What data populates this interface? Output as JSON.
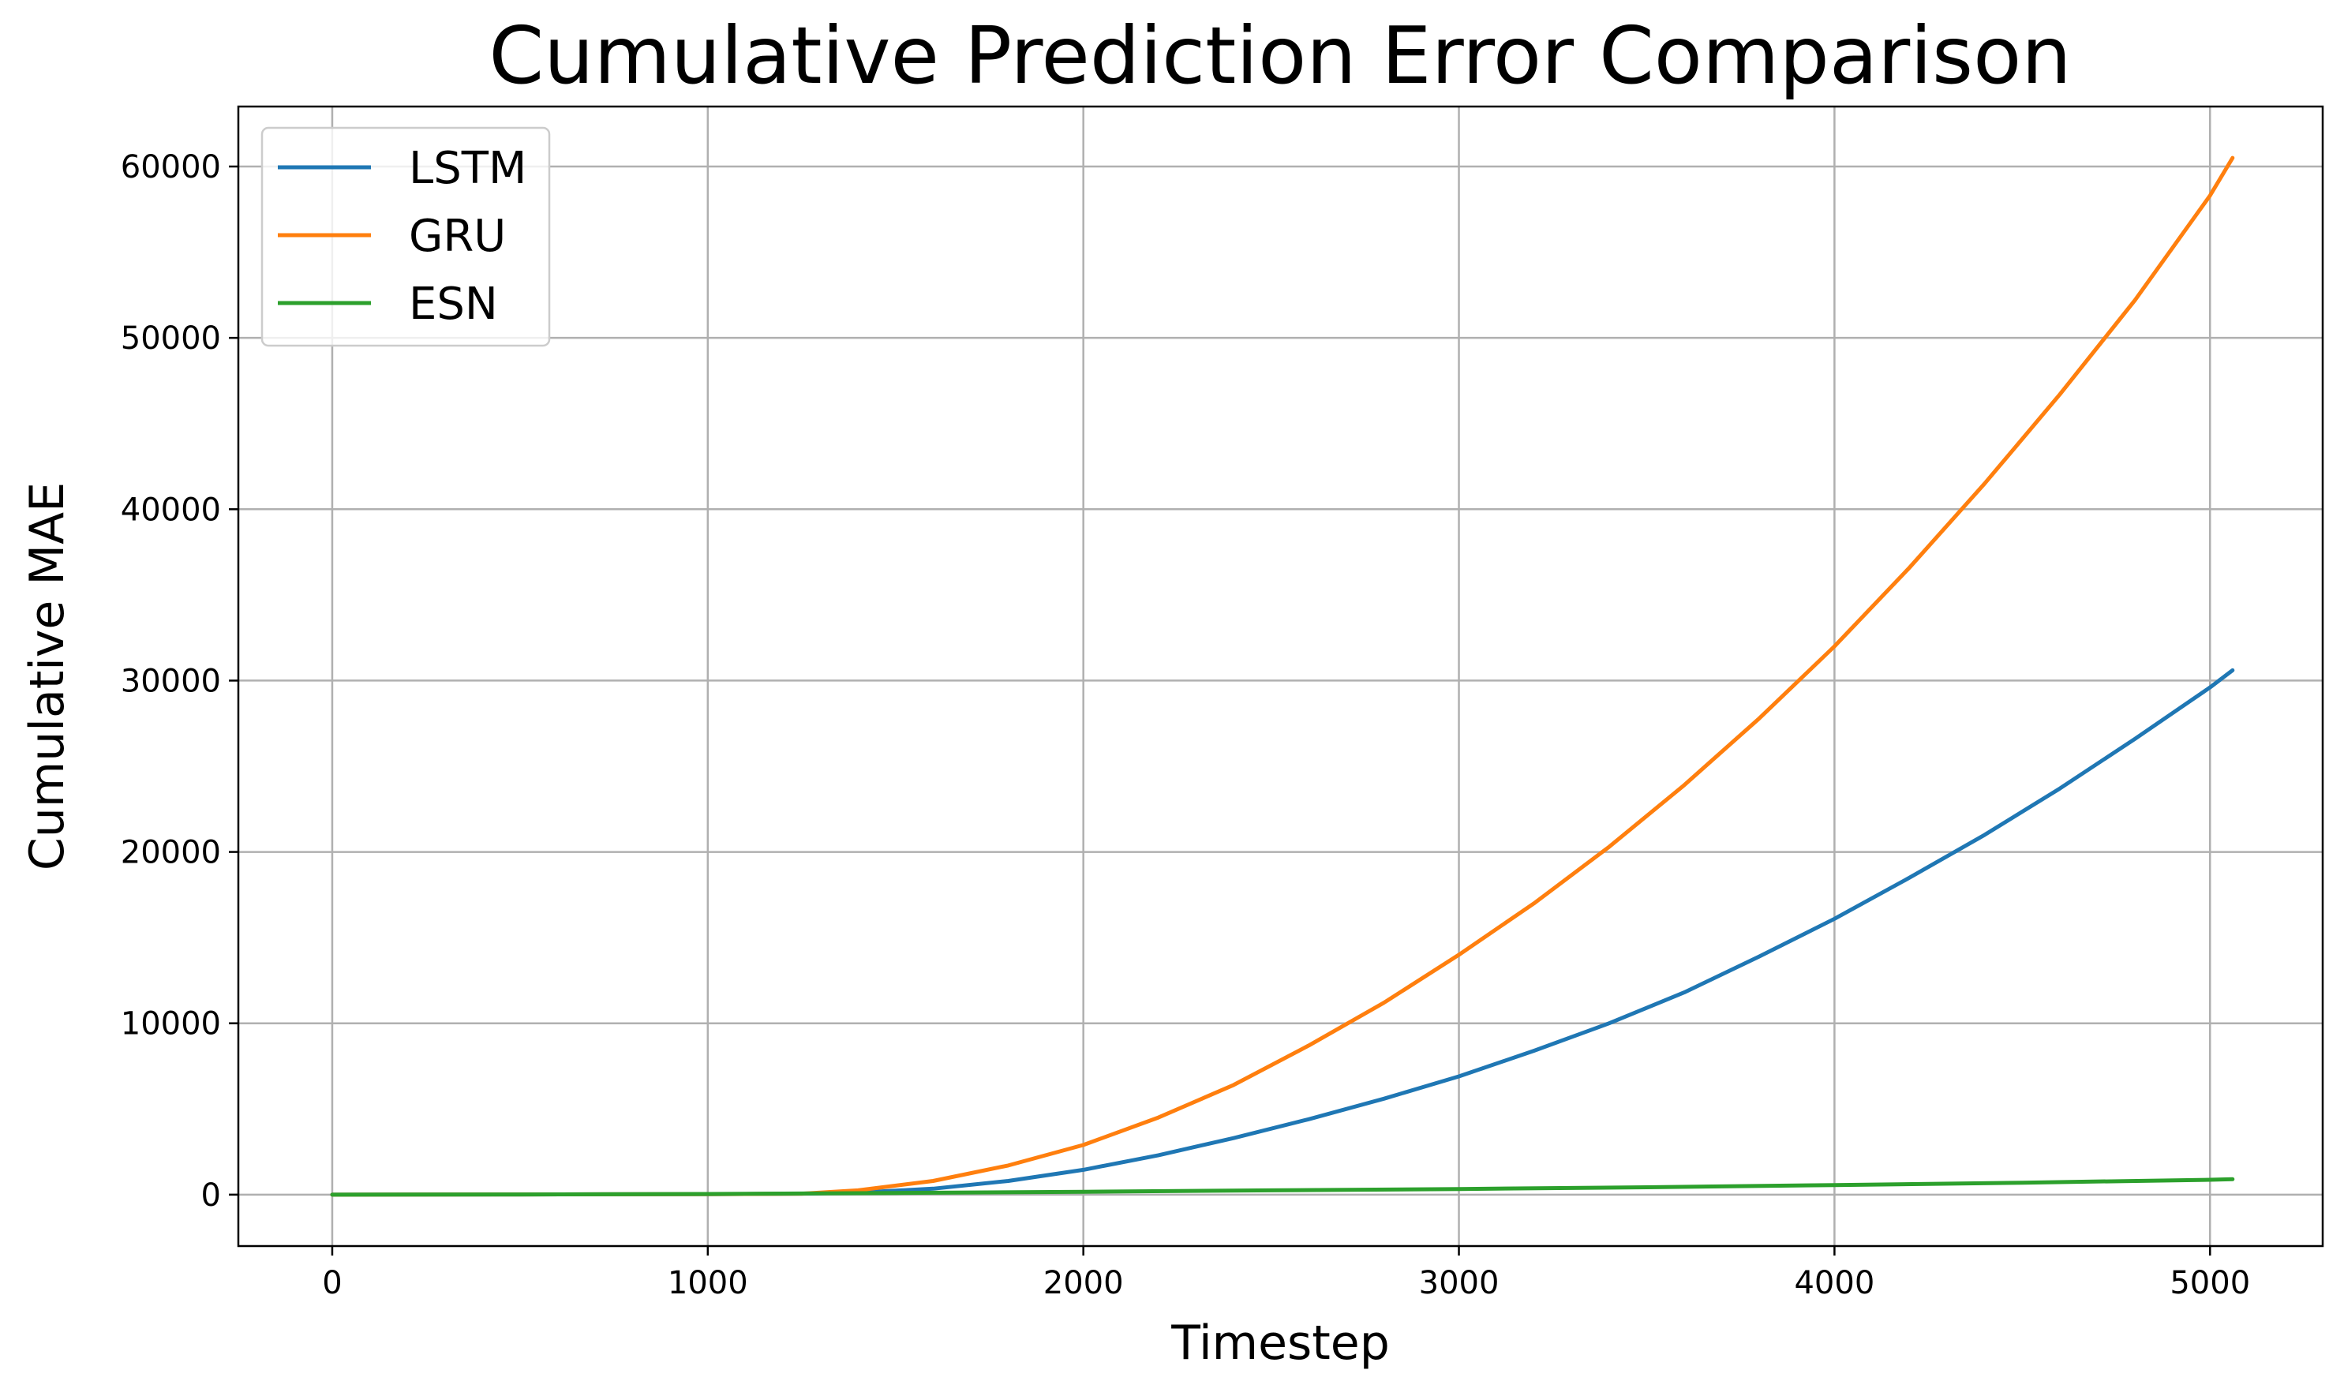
{
  "chart_data": {
    "type": "line",
    "title": "Cumulative Prediction Error Comparison",
    "xlabel": "Timestep",
    "ylabel": "Cumulative MAE",
    "xlim": [
      -250,
      5300
    ],
    "ylim": [
      -3000,
      63500
    ],
    "xticks": [
      0,
      1000,
      2000,
      3000,
      4000,
      5000
    ],
    "yticks": [
      0,
      10000,
      20000,
      30000,
      40000,
      50000,
      60000
    ],
    "grid": true,
    "legend_position": "upper-left",
    "colors": {
      "LSTM": "#1f77b4",
      "GRU": "#ff7f0e",
      "ESN": "#2ca02c"
    },
    "series": [
      {
        "name": "LSTM",
        "x": [
          0,
          500,
          1000,
          1250,
          1400,
          1600,
          1800,
          2000,
          2200,
          2400,
          2600,
          2800,
          3000,
          3200,
          3400,
          3600,
          3800,
          4000,
          4200,
          4400,
          4600,
          4800,
          5000,
          5060
        ],
        "y": [
          0,
          10,
          30,
          60,
          120,
          350,
          800,
          1450,
          2300,
          3300,
          4400,
          5600,
          6900,
          8400,
          10000,
          11800,
          13900,
          16100,
          18500,
          21000,
          23700,
          26600,
          29600,
          30600
        ]
      },
      {
        "name": "GRU",
        "x": [
          0,
          500,
          1000,
          1250,
          1400,
          1600,
          1800,
          2000,
          2200,
          2400,
          2600,
          2800,
          3000,
          3200,
          3400,
          3600,
          3800,
          4000,
          4200,
          4400,
          4600,
          4800,
          5000,
          5060
        ],
        "y": [
          0,
          10,
          30,
          60,
          250,
          800,
          1700,
          2900,
          4500,
          6400,
          8700,
          11200,
          14000,
          17000,
          20300,
          23900,
          27800,
          32000,
          36600,
          41500,
          46700,
          52200,
          58300,
          60500
        ]
      },
      {
        "name": "ESN",
        "x": [
          0,
          500,
          1000,
          1500,
          2000,
          2500,
          3000,
          3500,
          4000,
          4500,
          5000,
          5060
        ],
        "y": [
          0,
          10,
          40,
          100,
          170,
          250,
          330,
          430,
          560,
          700,
          870,
          900
        ]
      }
    ]
  }
}
